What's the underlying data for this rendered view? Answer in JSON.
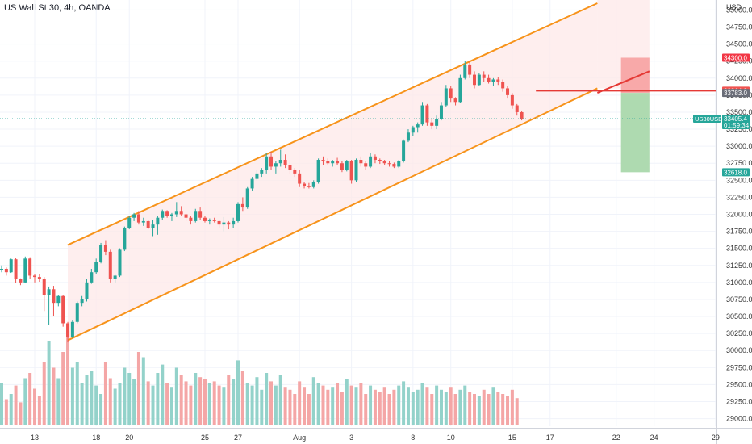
{
  "title": "US Wall St 30, 4h, OANDA",
  "colors": {
    "up": "#26a69a",
    "down": "#ef5350",
    "vol_up": "#93d2ca",
    "vol_down": "#f4a6a6",
    "channel": "#f7931a",
    "channel_fill": "#fde8e8",
    "stop": "#f7a1a1",
    "target": "#a5d6a7",
    "grid": "#f0f3fa",
    "axis_text": "#333333",
    "red_line": "#e53935",
    "badge_stop": "#f23645",
    "badge_entry": "#ef5350",
    "badge_grey": "#6a6d78",
    "badge_price": "#26a69a",
    "badge_target": "#26a69a"
  },
  "chart_data": {
    "type": "candlestick",
    "title": "US Wall St 30, 4h, OANDA",
    "y_axis_label": "USD",
    "ylim": [
      28900,
      35100
    ],
    "y_ticks": [
      29000,
      29250,
      29500,
      29750,
      30000,
      30250,
      30500,
      30750,
      31000,
      31250,
      31500,
      31750,
      32000,
      32250,
      32500,
      32750,
      33000,
      33250,
      33500,
      33750,
      34000,
      34250,
      34500,
      34750,
      35000
    ],
    "x_ticks": [
      {
        "label": "13",
        "index": 7
      },
      {
        "label": "18",
        "index": 20
      },
      {
        "label": "20",
        "index": 27
      },
      {
        "label": "25",
        "index": 43
      },
      {
        "label": "27",
        "index": 50
      },
      {
        "label": "Aug",
        "index": 63
      },
      {
        "label": "3",
        "index": 74
      },
      {
        "label": "8",
        "index": 87
      },
      {
        "label": "10",
        "index": 95
      },
      {
        "label": "15",
        "index": 108
      },
      {
        "label": "17",
        "index": 116
      },
      {
        "label": "22",
        "index": 130
      },
      {
        "label": "24",
        "index": 138
      },
      {
        "label": "29",
        "index": 151
      }
    ],
    "candles": [
      [
        31200,
        31250,
        31150,
        31200
      ],
      [
        31200,
        31220,
        31100,
        31150
      ],
      [
        31150,
        31350,
        31140,
        31340
      ],
      [
        31340,
        31360,
        30990,
        31050
      ],
      [
        31050,
        31060,
        30960,
        31000
      ],
      [
        31000,
        31380,
        30990,
        31350
      ],
      [
        31350,
        31370,
        31050,
        31100
      ],
      [
        31100,
        31120,
        31000,
        31080
      ],
      [
        31080,
        31120,
        31010,
        31050
      ],
      [
        31050,
        31080,
        30580,
        30820
      ],
      [
        30820,
        30940,
        30380,
        30900
      ],
      [
        30900,
        30950,
        30500,
        30700
      ],
      [
        30700,
        30820,
        30650,
        30800
      ],
      [
        30800,
        30810,
        30350,
        30400
      ],
      [
        30400,
        30420,
        30120,
        30200
      ],
      [
        30200,
        30450,
        30180,
        30420
      ],
      [
        30420,
        30720,
        30400,
        30700
      ],
      [
        30700,
        30800,
        30650,
        30750
      ],
      [
        30750,
        31050,
        30720,
        31000
      ],
      [
        31000,
        31200,
        30980,
        31150
      ],
      [
        31150,
        31350,
        31120,
        31300
      ],
      [
        31300,
        31580,
        31280,
        31550
      ],
      [
        31550,
        31620,
        31400,
        31450
      ],
      [
        31450,
        31480,
        31000,
        31050
      ],
      [
        31050,
        31110,
        31000,
        31100
      ],
      [
        31100,
        31500,
        31080,
        31480
      ],
      [
        31480,
        31820,
        31460,
        31800
      ],
      [
        31800,
        31980,
        31780,
        31950
      ],
      [
        31950,
        32020,
        31900,
        32000
      ],
      [
        32000,
        32050,
        31850,
        31880
      ],
      [
        31880,
        31950,
        31830,
        31900
      ],
      [
        31900,
        31920,
        31780,
        31800
      ],
      [
        31800,
        31920,
        31680,
        31850
      ],
      [
        31850,
        31980,
        31700,
        31950
      ],
      [
        31950,
        32070,
        31920,
        32050
      ],
      [
        32050,
        32060,
        31950,
        31980
      ],
      [
        31980,
        32020,
        31900,
        32000
      ],
      [
        32000,
        32180,
        31960,
        32050
      ],
      [
        32050,
        32120,
        31980,
        32000
      ],
      [
        32000,
        32010,
        31900,
        31950
      ],
      [
        31950,
        31980,
        31850,
        31900
      ],
      [
        31900,
        32080,
        31880,
        32050
      ],
      [
        32050,
        32100,
        31920,
        31950
      ],
      [
        31950,
        31980,
        31880,
        31900
      ],
      [
        31900,
        31940,
        31850,
        31920
      ],
      [
        31920,
        31950,
        31880,
        31900
      ],
      [
        31900,
        31920,
        31800,
        31850
      ],
      [
        31850,
        31960,
        31750,
        31880
      ],
      [
        31880,
        31900,
        31780,
        31850
      ],
      [
        31850,
        31950,
        31800,
        31900
      ],
      [
        31900,
        32180,
        31880,
        32150
      ],
      [
        32150,
        32250,
        32050,
        32100
      ],
      [
        32100,
        32400,
        32080,
        32380
      ],
      [
        32380,
        32550,
        32350,
        32520
      ],
      [
        32520,
        32650,
        32500,
        32600
      ],
      [
        32600,
        32680,
        32550,
        32650
      ],
      [
        32650,
        32900,
        32600,
        32850
      ],
      [
        32850,
        32920,
        32650,
        32700
      ],
      [
        32700,
        32780,
        32600,
        32750
      ],
      [
        32750,
        32950,
        32700,
        32800
      ],
      [
        32800,
        32880,
        32680,
        32720
      ],
      [
        32720,
        32800,
        32600,
        32650
      ],
      [
        32650,
        32680,
        32550,
        32600
      ],
      [
        32600,
        32650,
        32400,
        32450
      ],
      [
        32450,
        32480,
        32380,
        32420
      ],
      [
        32420,
        32460,
        32380,
        32400
      ],
      [
        32400,
        32500,
        32380,
        32480
      ],
      [
        32480,
        32820,
        32450,
        32800
      ],
      [
        32800,
        32850,
        32720,
        32780
      ],
      [
        32780,
        32820,
        32730,
        32750
      ],
      [
        32750,
        32800,
        32700,
        32780
      ],
      [
        32780,
        32830,
        32720,
        32750
      ],
      [
        32750,
        32780,
        32620,
        32650
      ],
      [
        32650,
        32800,
        32630,
        32780
      ],
      [
        32780,
        32800,
        32450,
        32500
      ],
      [
        32500,
        32820,
        32480,
        32800
      ],
      [
        32800,
        32850,
        32700,
        32750
      ],
      [
        32750,
        32780,
        32650,
        32700
      ],
      [
        32700,
        32900,
        32680,
        32850
      ],
      [
        32850,
        32880,
        32750,
        32800
      ],
      [
        32800,
        32820,
        32740,
        32780
      ],
      [
        32780,
        32800,
        32720,
        32750
      ],
      [
        32750,
        32780,
        32700,
        32740
      ],
      [
        32740,
        32760,
        32680,
        32700
      ],
      [
        32700,
        32800,
        32680,
        32780
      ],
      [
        32780,
        33100,
        32760,
        33080
      ],
      [
        33080,
        33250,
        33060,
        33200
      ],
      [
        33200,
        33300,
        33150,
        33280
      ],
      [
        33280,
        33350,
        33200,
        33320
      ],
      [
        33320,
        33650,
        33300,
        33600
      ],
      [
        33600,
        33620,
        33300,
        33350
      ],
      [
        33350,
        33400,
        33250,
        33300
      ],
      [
        33300,
        33450,
        33250,
        33400
      ],
      [
        33400,
        33650,
        33380,
        33600
      ],
      [
        33600,
        33900,
        33580,
        33850
      ],
      [
        33850,
        33880,
        33650,
        33700
      ],
      [
        33700,
        33720,
        33600,
        33650
      ],
      [
        33650,
        34050,
        33630,
        34000
      ],
      [
        34000,
        34250,
        33980,
        34200
      ],
      [
        34200,
        34260,
        34000,
        34050
      ],
      [
        34050,
        34100,
        33850,
        33900
      ],
      [
        33900,
        34080,
        33880,
        34050
      ],
      [
        34050,
        34100,
        33950,
        34000
      ],
      [
        34000,
        34050,
        33920,
        33950
      ],
      [
        33950,
        34000,
        33880,
        33980
      ],
      [
        33980,
        34020,
        33900,
        33950
      ],
      [
        33950,
        33980,
        33800,
        33850
      ],
      [
        33850,
        33880,
        33700,
        33750
      ],
      [
        33750,
        33780,
        33550,
        33600
      ],
      [
        33600,
        33620,
        33450,
        33500
      ],
      [
        33500,
        33520,
        33380,
        33405
      ]
    ],
    "volume": [
      40,
      25,
      30,
      38,
      22,
      45,
      50,
      35,
      28,
      60,
      80,
      55,
      45,
      70,
      90,
      55,
      60,
      40,
      48,
      52,
      38,
      30,
      60,
      45,
      35,
      40,
      55,
      50,
      44,
      70,
      65,
      42,
      38,
      50,
      58,
      40,
      36,
      55,
      48,
      42,
      38,
      50,
      46,
      44,
      40,
      42,
      38,
      36,
      48,
      44,
      62,
      52,
      40,
      38,
      46,
      34,
      50,
      42,
      38,
      48,
      36,
      34,
      30,
      42,
      36,
      30,
      46,
      40,
      38,
      34,
      36,
      40,
      32,
      44,
      38,
      36,
      40,
      30,
      38,
      34,
      32,
      36,
      30,
      34,
      38,
      42,
      36,
      32,
      34,
      40,
      36,
      30,
      38,
      34,
      32,
      36,
      30,
      34,
      38,
      32,
      30,
      28,
      34,
      30,
      36,
      32,
      30,
      28,
      34,
      26
    ],
    "channel_upper": [
      {
        "index": 14,
        "price": 31550
      },
      {
        "index": 126,
        "price": 35100
      }
    ],
    "channel_lower": [
      {
        "index": 14,
        "price": 30150
      },
      {
        "index": 126,
        "price": 33850
      }
    ],
    "position": {
      "start_index": 131,
      "end_index": 137,
      "entry": 33783.0,
      "stop": 34300.0,
      "target": 32618.0
    },
    "horizontal_line": {
      "start_index": 113,
      "price": 33814.9
    },
    "trend_from": {
      "index": 126,
      "price": 33783
    },
    "trend_to": {
      "index": 137,
      "price": 34100
    },
    "badges": [
      {
        "label": "34300.0",
        "price": 34300.0,
        "color_key": "badge_stop"
      },
      {
        "label": "33814.9",
        "price": 33814.9,
        "color_key": "badge_entry"
      },
      {
        "label": "33783.0",
        "price": 33783.0,
        "color_key": "badge_grey"
      },
      {
        "label": "33405.4",
        "price": 33405.4,
        "color_key": "badge_price",
        "extra": "01:59:34",
        "left_label": "US30USD"
      },
      {
        "label": "32618.0",
        "price": 32618.0,
        "color_key": "badge_target"
      }
    ]
  }
}
